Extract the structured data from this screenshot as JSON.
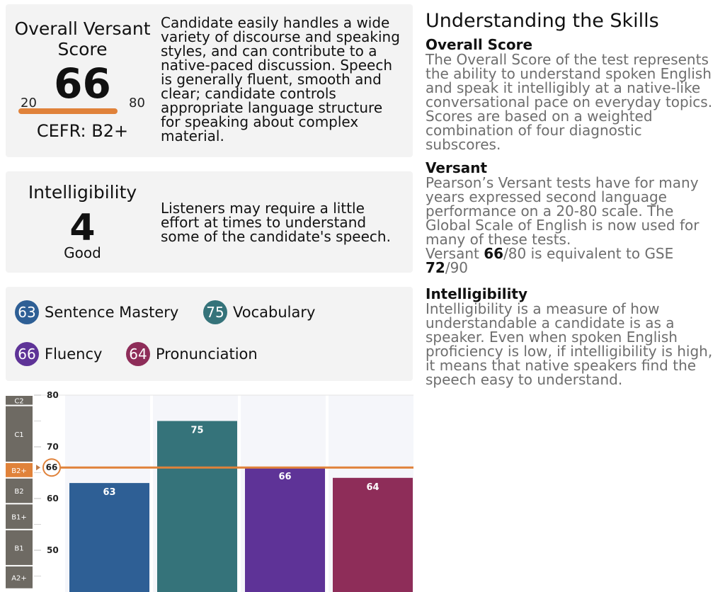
{
  "overall": {
    "label": "Overall Versant Score",
    "score": "66",
    "range_min": "20",
    "range_max": "80",
    "cefr": "CEFR: B2+",
    "description": "Candidate easily handles a wide variety of discourse and speaking styles, and can contribute to a native-paced discussion. Speech is generally fluent, smooth and clear; candidate controls appropriate language structure for speaking about complex material."
  },
  "intelligibility": {
    "label": "Intelligibility",
    "score": "4",
    "level": "Good",
    "description": "Listeners may require a little effort at times to understand some of the candidate's speech."
  },
  "skills": [
    {
      "score": "63",
      "name": "Sentence Mastery",
      "color": "#2e5f95"
    },
    {
      "score": "75",
      "name": "Vocabulary",
      "color": "#35737a"
    },
    {
      "score": "66",
      "name": "Fluency",
      "color": "#5e3397"
    },
    {
      "score": "64",
      "name": "Pronunciation",
      "color": "#8e2d59"
    }
  ],
  "chart_data": {
    "type": "bar",
    "categories": [
      "Sentence Mastery",
      "Vocabulary",
      "Fluency",
      "Pronunciation"
    ],
    "values": [
      63,
      75,
      66,
      64
    ],
    "colors": [
      "#2e5f95",
      "#35737a",
      "#5e3397",
      "#8e2d59"
    ],
    "reference_line": {
      "value": 66,
      "label": "66",
      "color": "#e0823a"
    },
    "yticks": [
      50,
      60,
      70,
      80
    ],
    "ylim": [
      42.5,
      80
    ],
    "cefr_bands": [
      {
        "label": "C2",
        "from": 78,
        "to": 80
      },
      {
        "label": "C1",
        "from": 67,
        "to": 78
      },
      {
        "label": "B2+",
        "from": 64,
        "to": 67
      },
      {
        "label": "B2",
        "from": 59,
        "to": 64
      },
      {
        "label": "B1+",
        "from": 54,
        "to": 59
      },
      {
        "label": "B1",
        "from": 47,
        "to": 54
      },
      {
        "label": "A2+",
        "from": 42.5,
        "to": 47
      }
    ],
    "highlight_band": "B2+",
    "band_color": "#6e6a63",
    "highlight_color": "#e0823a"
  },
  "help": {
    "title": "Understanding the Skills",
    "overall_heading": "Overall Score",
    "overall_text": "The Overall Score of the test represents the ability to understand spoken English and speak it intelligibly at a native-like conversational pace on everyday topics. Scores are based on a weighted combination of four diagnostic subscores.",
    "versant_heading": "Versant",
    "versant_text": "Pearson’s Versant tests have for many years expressed second language performance on a 20-80 scale. The Global Scale of English is now used for many of these tests.",
    "equiv_prefix": "Versant ",
    "equiv_score": "66",
    "equiv_mid": "/80 is equivalent to GSE ",
    "equiv_gse": "72",
    "equiv_suffix": "/90",
    "intel_heading": "Intelligibility",
    "intel_text": "Intelligibility is a measure of how understandable a candidate is as a speaker. Even when spoken English proficiency is low, if intelligibility is high, it means that native speakers find the speech easy to understand."
  }
}
